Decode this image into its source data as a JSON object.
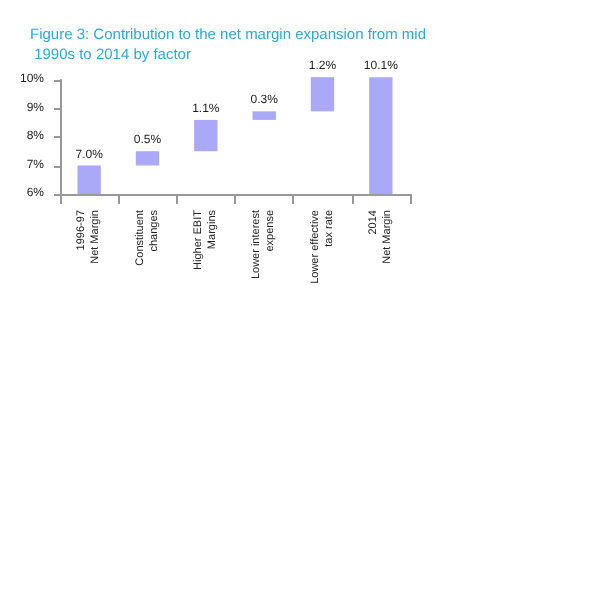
{
  "chart_data": {
    "type": "bar",
    "title": "Figure 3: Contribution to the net margin expansion from mid 1990s to 2014 by factor",
    "categories": [
      "1996-97\nNet Margin",
      "Constituent\nchanges",
      "Higher EBIT\nMargins",
      "Lower interest\nexpense",
      "Lower effective\ntax rate",
      "2014\nNet Margin"
    ],
    "values": [
      7.0,
      0.5,
      1.1,
      0.3,
      1.2,
      10.1
    ],
    "base": [
      null,
      7.0,
      7.5,
      8.6,
      8.9,
      null
    ],
    "value_labels": [
      "7.0%",
      "0.5%",
      "1.1%",
      "0.3%",
      "1.2%",
      "10.1%"
    ],
    "color": "#a9a9f7",
    "ylim": [
      6,
      10
    ],
    "yticks": [
      {
        "value": 6,
        "label": "6%"
      },
      {
        "value": 7,
        "label": "7%"
      },
      {
        "value": 8,
        "label": "8%"
      },
      {
        "value": 9,
        "label": "9%"
      },
      {
        "value": 10,
        "label": "10%"
      }
    ],
    "grid": false
  }
}
